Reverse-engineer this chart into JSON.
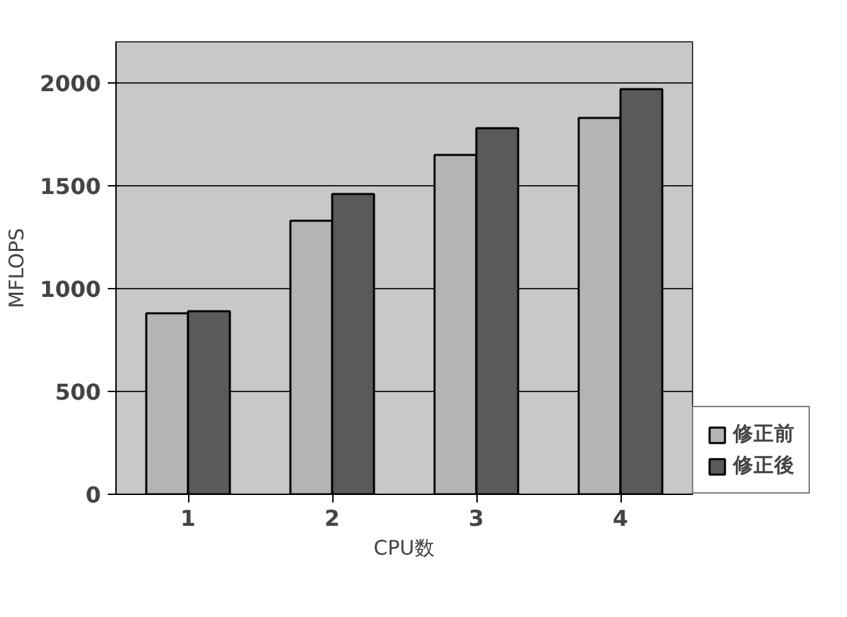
{
  "chart_data": {
    "type": "bar",
    "xlabel": "CPU数",
    "ylabel": "MFLOPS",
    "categories": [
      "1",
      "2",
      "3",
      "4"
    ],
    "series": [
      {
        "name": "修正前",
        "color": "#b4b4b4",
        "values": [
          880,
          1330,
          1650,
          1830
        ]
      },
      {
        "name": "修正後",
        "color": "#5a5a5a",
        "values": [
          890,
          1460,
          1780,
          1970
        ]
      }
    ],
    "ylim": [
      0,
      2200
    ],
    "yticks": [
      0,
      500,
      1000,
      1500,
      2000
    ],
    "grid": "y",
    "legend": "right"
  }
}
